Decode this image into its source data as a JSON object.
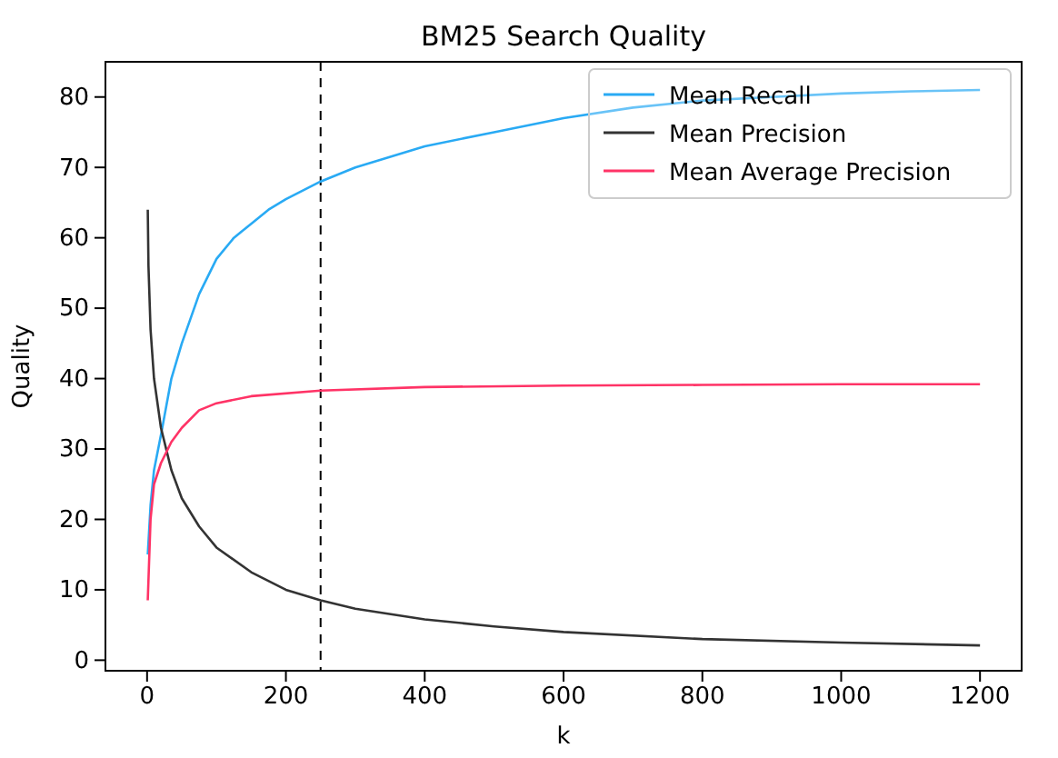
{
  "chart_data": {
    "type": "line",
    "title": "BM25 Search Quality",
    "xlabel": "k",
    "ylabel": "Quality",
    "xlim": [
      -60,
      1260
    ],
    "xticks": [
      0,
      200,
      400,
      600,
      800,
      1000,
      1200
    ],
    "ylim": [
      -1.5,
      85
    ],
    "yticks": [
      0,
      10,
      20,
      30,
      40,
      50,
      60,
      70,
      80
    ],
    "legend": "top right",
    "grid": false,
    "marker": "none",
    "line_style": "solid",
    "ref_lines": [
      {
        "axis": "x",
        "value": 250,
        "label": null,
        "color": "#000000",
        "line_style": "dashed"
      }
    ],
    "series": [
      {
        "name": "Mean Recall",
        "color": "#29aaf4",
        "x": [
          1,
          5,
          10,
          20,
          35,
          50,
          75,
          100,
          125,
          150,
          175,
          200,
          250,
          300,
          400,
          500,
          600,
          700,
          800,
          900,
          1000,
          1100,
          1200
        ],
        "values": [
          15,
          22,
          27,
          32,
          40,
          45,
          52,
          57,
          60,
          62,
          64,
          65.5,
          68,
          70,
          73,
          75,
          77,
          78.5,
          79.5,
          80,
          80.5,
          80.8,
          81
        ]
      },
      {
        "name": "Mean Precision",
        "color": "#333333",
        "x": [
          1,
          2,
          5,
          10,
          20,
          35,
          50,
          75,
          100,
          150,
          200,
          250,
          300,
          400,
          500,
          600,
          800,
          1000,
          1200
        ],
        "values": [
          64,
          56,
          47,
          40,
          33,
          27,
          23,
          19,
          16,
          12.5,
          10,
          8.5,
          7.3,
          5.8,
          4.8,
          4,
          3,
          2.5,
          2.1
        ]
      },
      {
        "name": "Mean Average Precision",
        "color": "#ff3366",
        "x": [
          1,
          5,
          10,
          20,
          35,
          50,
          75,
          100,
          150,
          250,
          400,
          600,
          800,
          1000,
          1200
        ],
        "values": [
          8.5,
          20,
          25,
          28,
          31,
          33,
          35.5,
          36.5,
          37.5,
          38.3,
          38.8,
          39,
          39.1,
          39.2,
          39.2
        ]
      }
    ]
  }
}
